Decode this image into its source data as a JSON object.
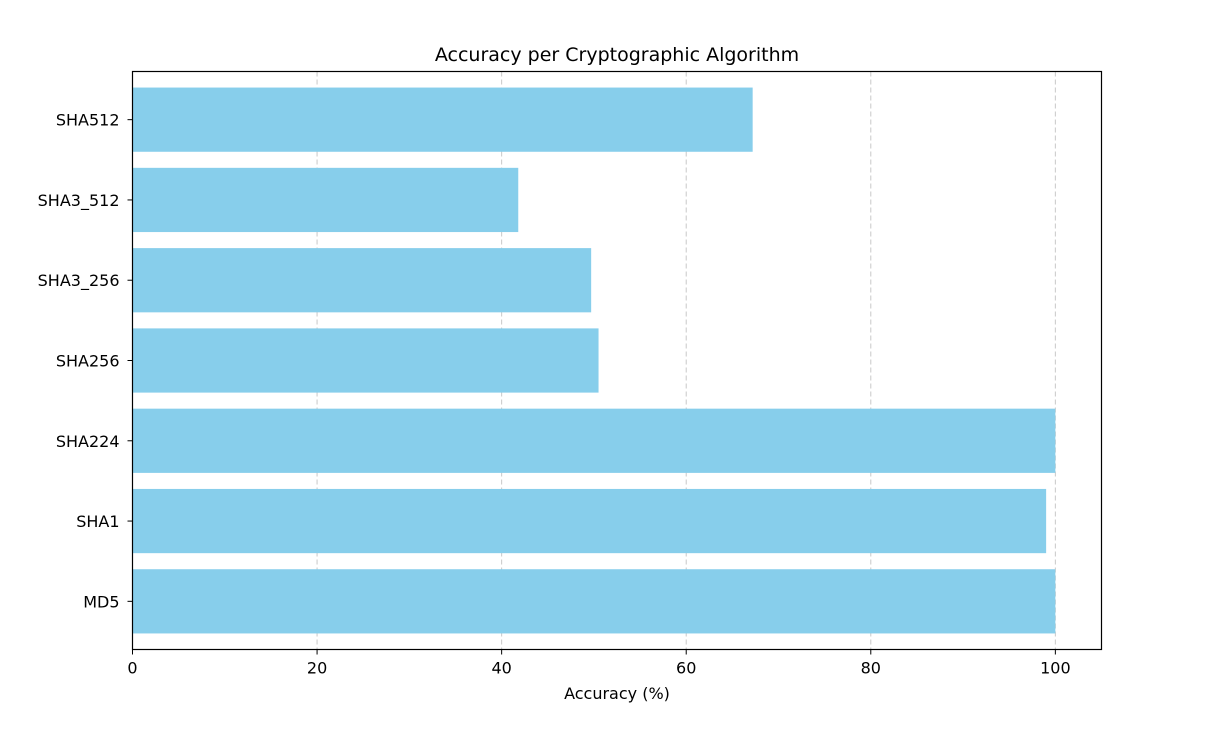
{
  "chart_data": {
    "type": "bar",
    "orientation": "horizontal",
    "title": "Accuracy per Cryptographic Algorithm",
    "xlabel": "Accuracy (%)",
    "ylabel": "",
    "xlim": [
      0,
      105
    ],
    "xticks": [
      0,
      20,
      40,
      60,
      80,
      100
    ],
    "grid": "x, dashed",
    "bar_color": "#87CEEB",
    "categories": [
      "MD5",
      "SHA1",
      "SHA224",
      "SHA256",
      "SHA3_256",
      "SHA3_512",
      "SHA512"
    ],
    "values": [
      100,
      99,
      100,
      50.5,
      49.7,
      41.8,
      67.2
    ]
  }
}
